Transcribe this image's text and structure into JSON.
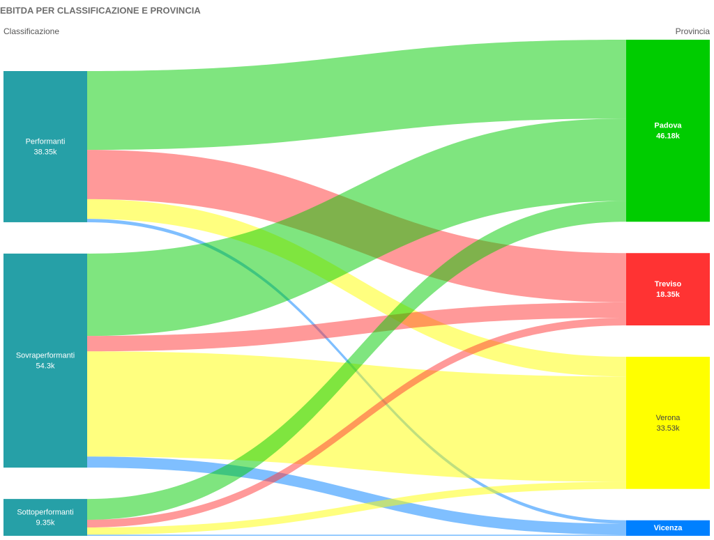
{
  "chart_data": {
    "type": "sankey",
    "title": "EBITDA PER CLASSIFICAZIONE E PROVINCIA",
    "source_header": "Classificazione",
    "target_header": "Provincia",
    "sources": {
      "names": [
        "Performanti",
        "Sovraperformanti",
        "Sottoperformanti"
      ],
      "values": [
        38350,
        54300,
        9350
      ],
      "value_labels": [
        "38.35k",
        "54.3k",
        "9.35k"
      ],
      "color": "#26a0a7"
    },
    "targets": {
      "names": [
        "Padova",
        "Treviso",
        "Verona",
        "Vicenza"
      ],
      "values": [
        46180,
        18350,
        33530,
        3940
      ],
      "value_labels": [
        "46.18k",
        "18.35k",
        "33.53k",
        null
      ],
      "colors": [
        "#00cc00",
        "#ff3333",
        "#ffff00",
        "#0080ff"
      ]
    },
    "links": [
      {
        "source": 0,
        "target": 0,
        "value": 20000
      },
      {
        "source": 0,
        "target": 1,
        "value": 12500
      },
      {
        "source": 0,
        "target": 2,
        "value": 5000
      },
      {
        "source": 0,
        "target": 3,
        "value": 850
      },
      {
        "source": 1,
        "target": 0,
        "value": 20900
      },
      {
        "source": 1,
        "target": 1,
        "value": 3900
      },
      {
        "source": 1,
        "target": 2,
        "value": 26700
      },
      {
        "source": 1,
        "target": 3,
        "value": 2800
      },
      {
        "source": 2,
        "target": 0,
        "value": 5280
      },
      {
        "source": 2,
        "target": 1,
        "value": 1950
      },
      {
        "source": 2,
        "target": 2,
        "value": 1830
      },
      {
        "source": 2,
        "target": 3,
        "value": 290
      }
    ]
  }
}
